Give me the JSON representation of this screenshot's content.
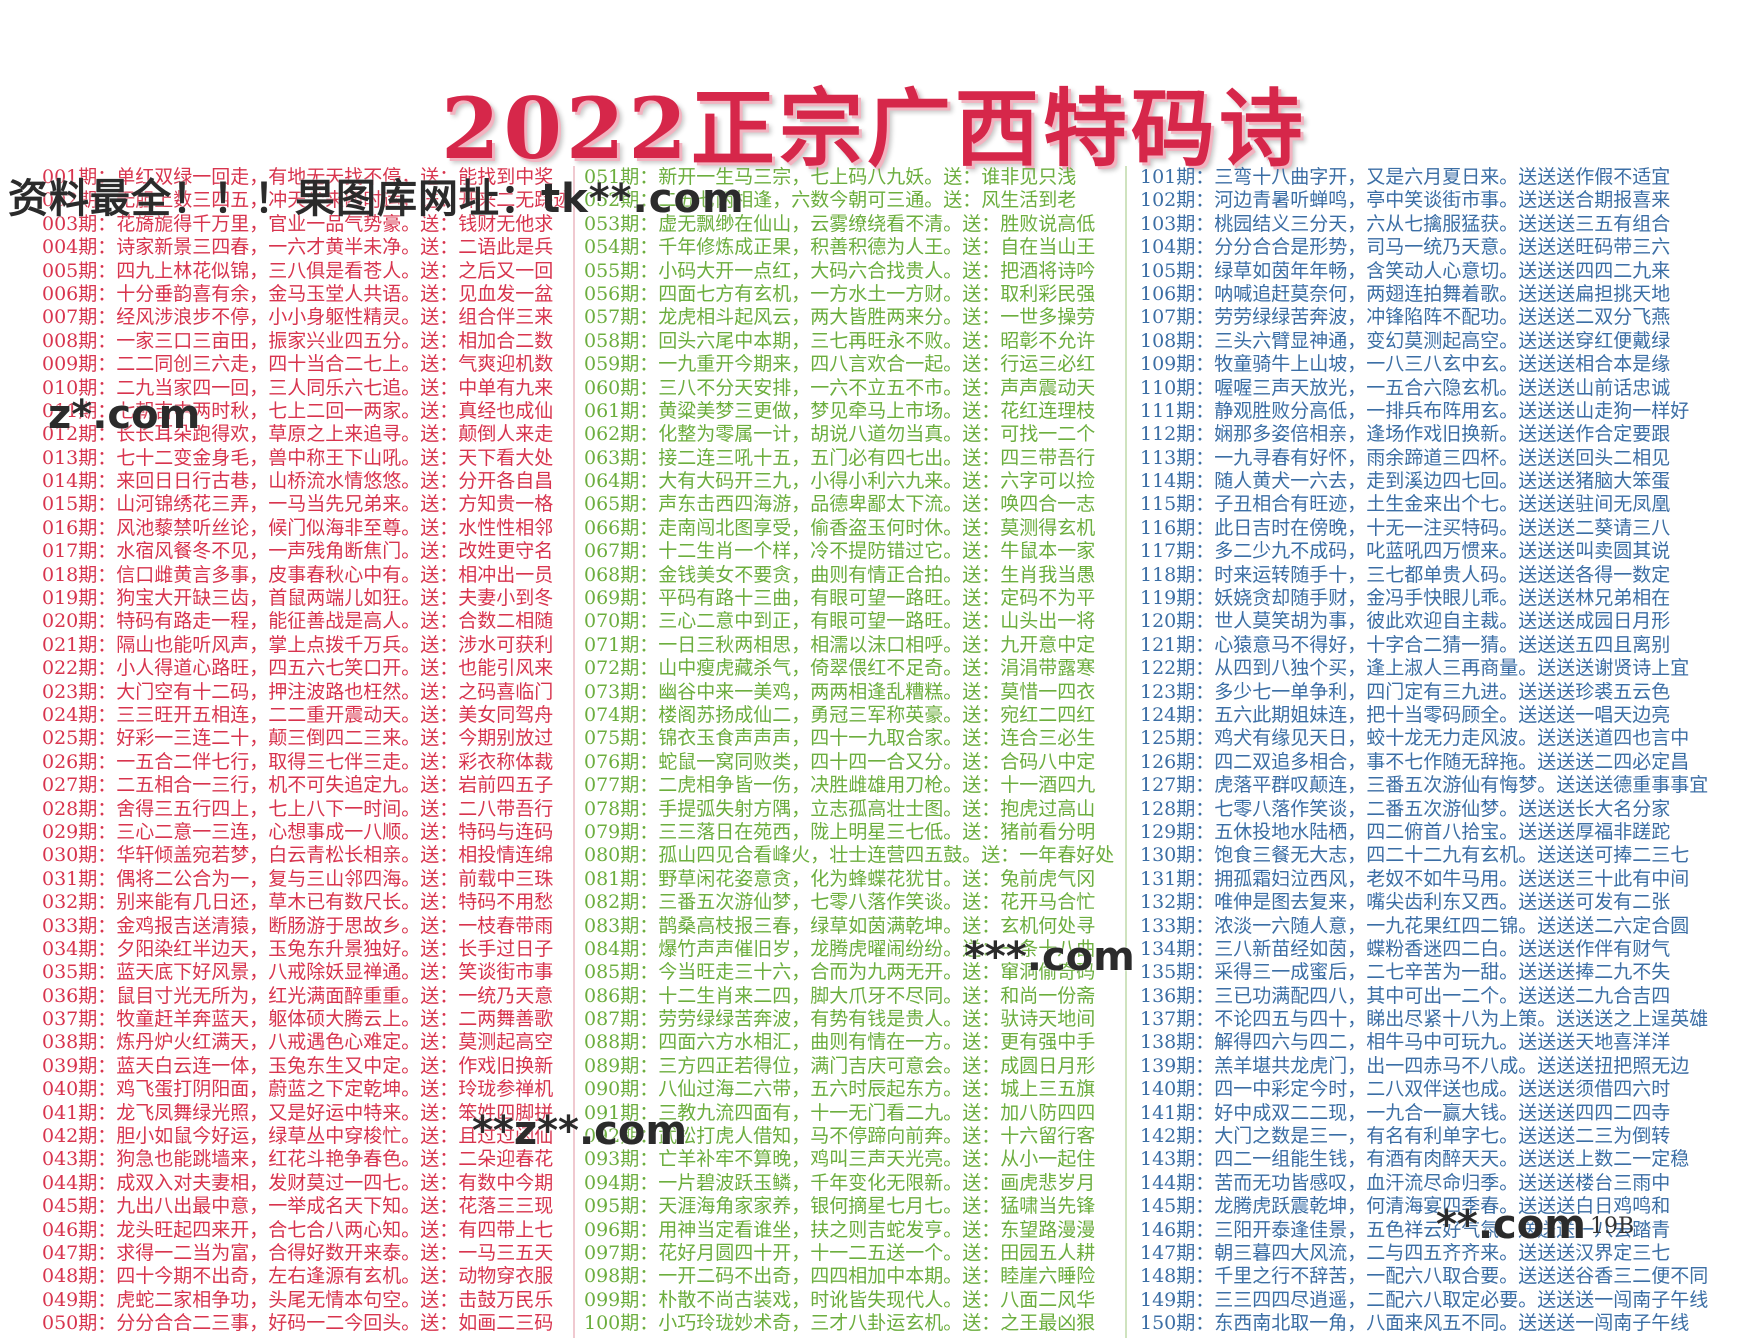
{
  "title": "2022正宗广西特码诗",
  "page_number": "19B",
  "watermarks": [
    "资料最全！！！果图库网址：tk**.com",
    "z*.com",
    "***.com",
    "**z**.com",
    "**.com"
  ],
  "colors": {
    "column1": "#d8344e",
    "column2": "#6cae3e",
    "column3": "#3b6ea5",
    "title": "#d6274a"
  },
  "column1": [
    "001期：单红双绿一回走，有地无天找不停，送：能找到中奖",
    "002期：无胆上数三四五，冲天尖来四时运，送：开来二无踪迹",
    "003期：花旖旎得千万里，官业一品气势豪。送：钱财无他求",
    "004期：诗家新景三四春，一六才黄半未净。送：二语此是兵",
    "005期：四九上林花似锦，三八俱是看苍人。送：之后又一回",
    "006期：十分垂韵喜有余，金马玉堂人共语。送：见血发一盆",
    "007期：经风涉浪步不停，小小身躯性精灵。送：组合伴三来",
    "008期：一家三口三亩田，振家兴业四五分。送：相加合二数",
    "009期：二二同创三六走，四十当合二七上。送：气爽迎机数",
    "010期：二九当家四一回，三人同乐六七追。送：中单有九来",
    "011期：七朝吉中两时秋，七上二回一两家。送：真经也成仙",
    "012期：长长耳朵跑得欢，草原之上来追寻。送：颠倒人来走",
    "013期：七十二变金身毛，兽中称王下山吼。送：天下看大处",
    "014期：来回日日行古巷，山桥流水情悠悠。送：分开各自昌",
    "015期：山河锦绣花三弄，一马当先兄弟来。送：方知贵一格",
    "016期：风池藜禁听丝论，候门似海非至尊。送：水性性相邻",
    "017期：水宿风餐冬不见，一声残角断焦门。送：改姓更守名",
    "018期：信口雌黄言多事，皮事春秋心中有。送：相冲出一员",
    "019期：狗宝大开缺三齿，首鼠两端儿如狂。送：夫妻小到冬",
    "020期：特码有路走一程，能征善战是高人。送：合数二相随",
    "021期：隔山也能听风声，掌上点拨千万兵。送：涉水可获利",
    "022期：小人得道心路旺，四五六七笑口开。送：也能引风来",
    "023期：大门空有十二码，押注波路也枉然。送：之码喜临门",
    "024期：三三旺开五相连，二二重开震动天。送：美女同驾舟",
    "025期：好彩一三连二十，颠三倒四二三来。送：今期别放过",
    "026期：一五合二伴七行，取得三七伴三走。送：彩衣称体裁",
    "027期：二五相合一三行，机不可失追定九。送：岩前四五子",
    "028期：舍得三五行四上，七上八下一时间。送：二八带吾行",
    "029期：三心二意一三连，心想事成一八顺。送：特码与连码",
    "030期：华轩倾盖宛若梦，白云青松长相亲。送：相投情连绵",
    "031期：偶将二公合为一，复与三山邻四海。送：前载中三珠",
    "032期：别来能有几日还，草木已有数尺长。送：特码不用愁",
    "033期：金鸡报吉送清猿，断肠游于思故乡。送：一枝春带雨",
    "034期：夕阳染红半边天，玉兔东升景独好。送：长手过日子",
    "035期：蓝天底下好风景，八戒除妖显禅通。送：笑谈街市事",
    "036期：鼠目寸光无所为，红光满面醉重重。送：一统乃天意",
    "037期：牧童赶羊奔蓝天，躯体硕大腾云上。送：二两舞善歌",
    "038期：炼丹炉火红满天，八戒遇色心难定。送：莫测起高空",
    "039期：蓝天白云连一体，玉兔东生又中定。送：作戏旧换新",
    "040期：鸡飞蛋打阴阳面，蔚蓝之下定乾坤。送：玲珑参禅机",
    "041期：龙飞凤舞绿光照，又是好运中特来。送：笨姓四脚拼",
    "042期：胆小如鼠今好运，绿草丛中穿梭忙。送：且过过闲仙",
    "043期：狗急也能跳墙来，红花斗艳争春色。送：二朵迎春花",
    "044期：成双入对夫妻相，发财莫过一四七。送：有数中今期",
    "045期：九出八出最中意，一举成名天下知。送：花落三三现",
    "046期：龙头旺起四来开，合七合八两心知。送：有四带上七",
    "047期：求得一二当为富，合得好数开来泰。送：一马三五天",
    "048期：四十今期不出奇，左右逢源有玄机。送：动物穿衣服",
    "049期：虎蛇二家相争功，头尾无情本句空。送：击鼓万民乐",
    "050期：分分合合二三事，好码一二今回头。送：如画二三码"
  ],
  "column2": [
    "051期：新开一生马三宗，七上码八九妖。送：谁非见只浅",
    "052期：二五七两相逢，六数今朝可三通。送：风生活到老",
    "053期：虚无飘缈在仙山，云雾缭绕看不清。送：胜败说高低",
    "054期：千年修炼成正果，积善积德为人王。送：自在当山王",
    "055期：小码大开一点红，大码六合找贵人。送：把酒将诗吟",
    "056期：四面七方有玄机，一方水土一方财。送：取利彩民强",
    "057期：龙虎相斗起风云，两大皆胜两来分。送：一世多操劳",
    "058期：回头六尾中本期，三七再旺永不败。送：昭彰不允许",
    "059期：一九重开今期来，四八言欢合一起。送：行运三必红",
    "060期：三八不分天安排，一六不立五不市。送：声声震动天",
    "061期：黄粱美梦三更做，梦见牵马上市场。送：花红连理枝",
    "062期：化整为零属一计，胡说八道勿当真。送：可找一二个",
    "063期：接二连三吼十五，五门必有四七出。送：四三带吾行",
    "064期：大有大码开三九，小得小利六九来。送：六字可以捡",
    "065期：声东击西四海游，品德卑鄙太下流。送：唤四合一志",
    "066期：走南闯北图享受，偷香盗玉何时休。送：莫测得玄机",
    "067期：十二生肖一个样，冷不提防错过它。送：牛鼠本一家",
    "068期：金钱美女不要贪，曲则有情正合拍。送：生肖我当愚",
    "069期：平码有路十三曲，有眼可望一路旺。送：定码不为平",
    "070期：三心二意中到正，有眼可望一路旺。送：山头出一将",
    "071期：一日三秋两相思，相濡以沫口相呼。送：九开意中定",
    "072期：山中瘦虎藏杀气，倚翠偎红不足奇。送：涓涓带露寒",
    "073期：幽谷中来一美鸡，两两相逢乱糟糕。送：莫惜一四衣",
    "074期：楼阁苏扬成仙二，勇冠三军称英豪。送：宛红二四红",
    "075期：锦衣玉食声声声，四十一九取合家。送：连合三必生",
    "076期：蛇鼠一窝同败类，四十四一合又分。送：合码八中定",
    "077期：二虎相争皆一伤，决胜雌雄用刀枪。送：十一酒四九",
    "078期：手提弧失射方隅，立志孤高壮士图。送：抱虎过高山",
    "079期：三三落日在苑西，陇上明星三七低。送：猪前看分明",
    "080期：孤山四见合看峰火，壮士连营四五鼓。送：一年春好处",
    "081期：野草闲花姿意贪，化为蜂蝶花犹甘。送：兔前虎气冈",
    "082期：三番五次游仙梦，七零八落作笑谈。送：花开马合忙",
    "083期：鹊桑高枝报三春，绿草如茵满乾坤。送：玄机何处寻",
    "084期：爆竹声声催旧岁，龙腾虎曜闹纷纷。送：一条十八曲",
    "085期：今当旺走三十六，合而为九两无开。送：窜洞偷奇码",
    "086期：十二生肖来二四，脚大爪牙不尽同。送：和尚一份斋",
    "087期：劳劳绿绿苦奔波，有势有钱是贵人。送：驮诗天地间",
    "088期：四面六方水相汇，曲则有情在一方。送：更有强中手",
    "089期：三方四正若得位，满门吉庆可意会。送：成圆日月形",
    "090期：八仙过海二六带，五六时辰起东方。送：城上三五旗",
    "091期：三教九流四面有，十一无门看二九。送：加八防四四",
    "092期：武松打虎人借知，马不停蹄向前奔。送：十六留行客",
    "093期：亡羊补牢不算晚，鸡叫三声天光亮。送：从小一起住",
    "094期：一片碧波跃玉鳞，千年变化无限新。送：画虎悲岁月",
    "095期：天涯海角家家养，银何摘星七月七。送：猛啸当先锋",
    "096期：用神当定看谁坐，扶之则吉蛇发亨。送：东望路漫漫",
    "097期：花好月圆四十开，十一二五送一个。送：田园五人耕",
    "098期：一开二码不出奇，四四相加中本期。送：睦崖六睡险",
    "099期：朴散不尚古装戏，时讹皆失现代人。送：八面二风华",
    "100期：小巧玲珑妙术奇，三才八卦运玄机。送：之王最凶狠"
  ],
  "column3": [
    "101期：三弯十八曲字开，又是六月夏日来。送送送作假不适宜",
    "102期：河边青暑听蝉鸣，亭中笑谈街市事。送送送合期报喜来",
    "103期：桃园结义三分天，六从七擒服猛获。送送送三五有组合",
    "104期：分分合合是形势，司马一统乃天意。送送送旺码带三六",
    "105期：绿草如茵年年畅，含笑动人心意切。送送送四四二九来",
    "106期：呐喊追赶莫奈何，两翅连拍舞着歌。送送送扁担挑天地",
    "107期：劳劳绿绿苦奔波，冲锋陷阵不配功。送送送二双分飞燕",
    "108期：三头六臂显神通，变幻莫测起高空。送送送穿红便戴绿",
    "109期：牧童骑牛上山坡，一八三八玄中玄。送送送相合本是缘",
    "110期：喔喔三声天放光，一五合六隐玄机。送送送山前话忠诚",
    "111期：静观胜败分高低，一排兵布阵用玄。送送送山走狗一样好",
    "112期：娴那多姿倍相亲，逢场作戏旧换新。送送送作合定要跟",
    "113期：一九寻春有好怀，雨余蹄道三四杯。送送送回头二相见",
    "114期：随人黄犬一六去，走到溪边四七回。送送送猪脑大笨蛋",
    "115期：子丑相合有旺迹，土生金来出个七。送送送驻间无凤凰",
    "116期：此日吉时在傍晚，十无一注买特码。送送送二葵请三八",
    "117期：多二少九不成码，叱蓝吼四万惯来。送送送叫卖圆其说",
    "118期：时来运转随手十，三七都单贵人码。送送送各得一数定",
    "119期：妖娆贪却随手财，金冯手快眼儿乖。送送送林兄弟相在",
    "120期：世人莫笑胡为事，彼此欢迎自主裁。送送送成园日月形",
    "121期：心猿意马不得好，十字合二猜一猜。送送送五四且离别",
    "122期：从四到八独个买，逢上淑人三再商量。送送送谢贤诗上宜",
    "123期：多少七一单争利，四门定有三九进。送送送珍裘五云色",
    "124期：五六此期姐妹连，把十当零码顾全。送送送一唱天边亮",
    "125期：鸡犬有缘见天日，蛟十龙无力走风波。送送送道四也言中",
    "126期：四二双追多相合，事不七作随无辞拖。送送送二四必定昌",
    "127期：虎落平群叹颠连，三番五次游仙有悔梦。送送送德重事事宜",
    "128期：七零八落作笑谈，二番五次游仙梦。送送送长大名分家",
    "129期：五休投地水陆栖，四二俯首八拾宝。送送送厚福非蹉跎",
    "130期：饱食三餐无大志，四二十二九有玄机。送送送可捧二三七",
    "131期：拥孤霜妇泣西风，老奴不如牛马用。送送送三十此有中间",
    "132期：唯伸是图去复来，嘴尖齿利东又西。送送送可发有二张",
    "133期：浓淡一六随人意，一九花果红四二锦。送送送二六定合圆",
    "134期：三八新苗经如茵，蝶粉香迷四二白。送送送作伴有财气",
    "135期：采得三一成蜜后，二七辛苦为一甜。送送送捧二九不失",
    "136期：三已功满配四八，其中可出一二个。送送送二九合吉四",
    "137期：不论四五与四十，睇出尽紧十八为上策。送送送之上逞英雄",
    "138期：解得四六与四二，相牛马中可玩九。送送送天地喜洋洋",
    "139期：羔羊堪共龙虎门，出一四赤马不八成。送送送扭把照无边",
    "140期：四一中彩定今时，二八双伴送也成。送送送须借四六时",
    "141期：好中成双二二现，一九合一赢大钱。送送送四四二四寺",
    "142期：大门之数是三一，有名有利单字七。送送送二三为倒转",
    "143期：四二一组能生钱，有酒有肉醉天天。送送送上数二一定稳",
    "144期：苦而无功皆感叹，血汗流尽命归季。送送送楼台三雨中",
    "145期：龙腾虎跃震乾坤，何清海宴四季春。送送送白日鸡鸣和",
    "146期：三阳开泰逢佳景，五色祥云好气氛。送送送一八去踏青",
    "147期：朝三暮四大风流，二与四五齐齐来。送送送汉界定三七",
    "148期：千里之行不辞苦，一配六八取合要。送送送谷香三二便不同",
    "149期：三三四四尽逍遥，二配六八取定必要。送送送一闯南子午线",
    "150期：东西南北取一角，八面来风五不同。送送送一闯南子午线"
  ]
}
